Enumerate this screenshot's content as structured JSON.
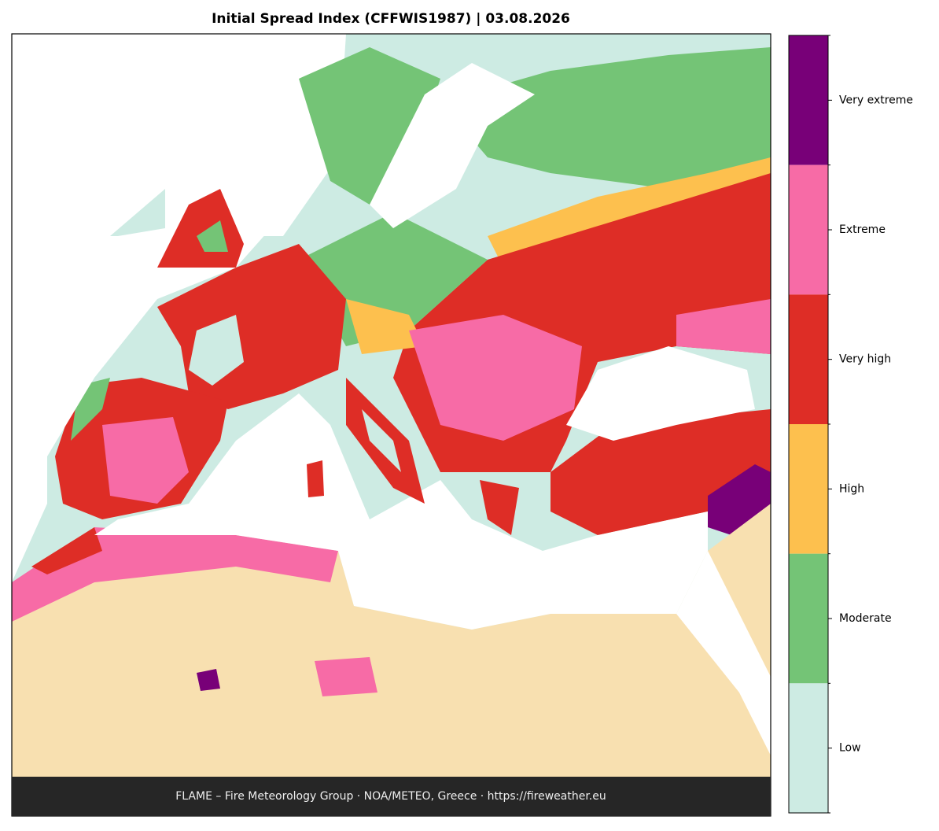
{
  "title": "Initial Spread Index (CFFWIS1987)  |  03.08.2026",
  "footer": "FLAME – Fire Meteorology Group · NOA/METEO, Greece · https://fireweather.eu",
  "legend": {
    "items": [
      {
        "label": "Very extreme",
        "color": "#780078"
      },
      {
        "label": "Extreme",
        "color": "#f76ba6"
      },
      {
        "label": "Very high",
        "color": "#de2d26"
      },
      {
        "label": "High",
        "color": "#fdc04e"
      },
      {
        "label": "Moderate",
        "color": "#74c476"
      },
      {
        "label": "Low",
        "color": "#cdebe3"
      }
    ]
  }
}
